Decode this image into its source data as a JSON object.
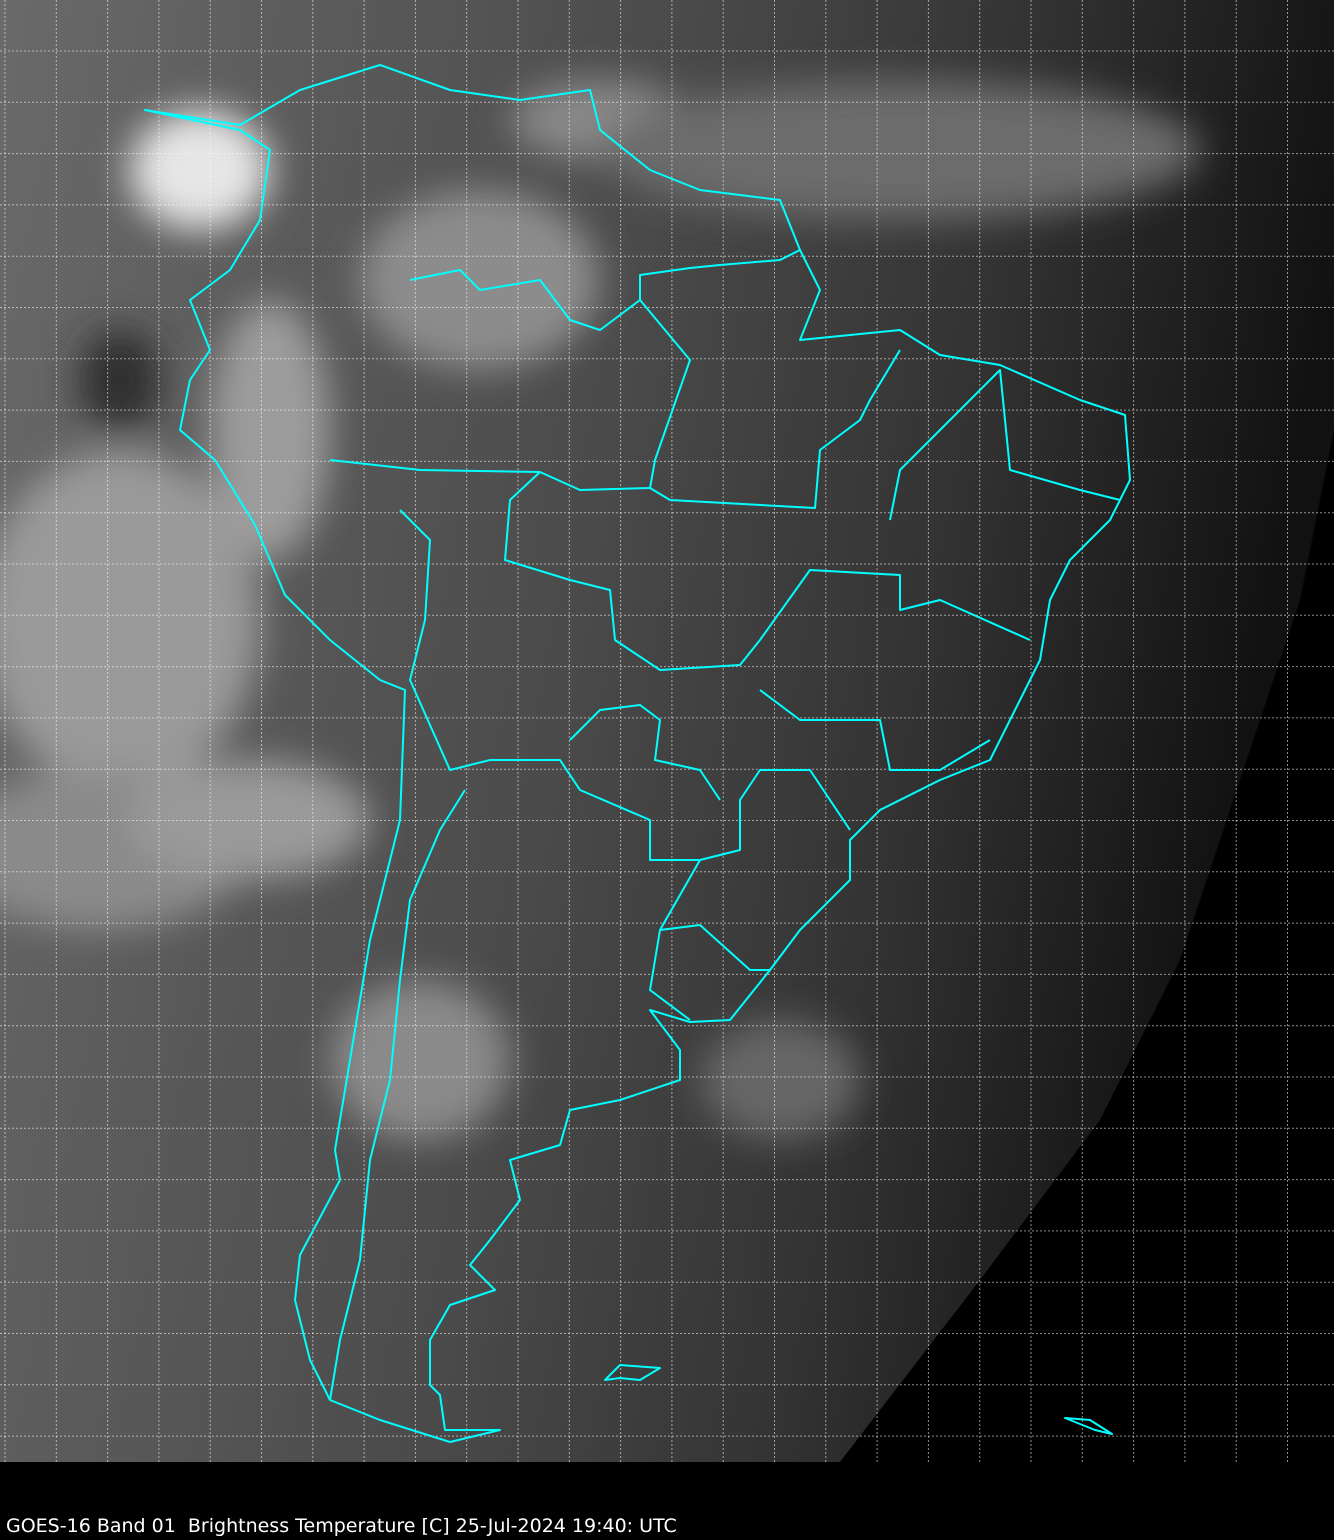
{
  "image": {
    "satellite": "GOES-16",
    "band": "Band 01",
    "region": "South America",
    "overlay_color": "#00ffff",
    "grid_color": "#ffffff"
  },
  "caption": "GOES-16 Band 01  Brightness Temperature [C] 25-Jul-2024 19:40: UTC"
}
